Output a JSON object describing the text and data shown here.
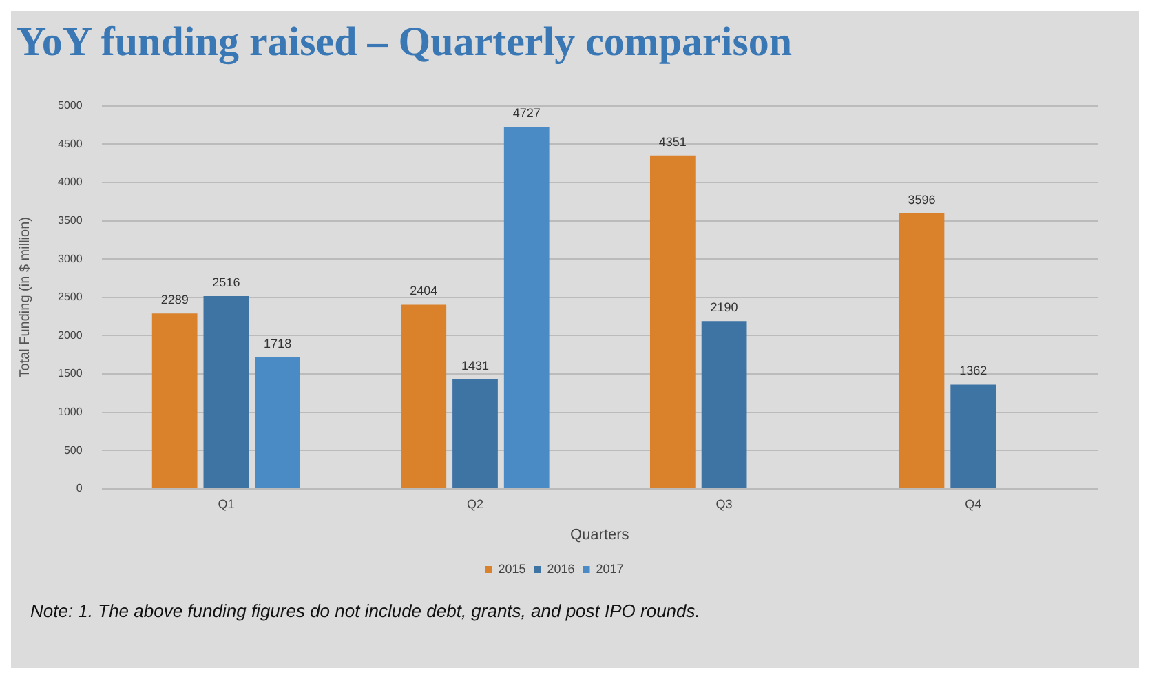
{
  "chart_data": {
    "type": "bar",
    "title": "YoY funding raised – Quarterly comparison",
    "xlabel": "Quarters",
    "ylabel": "Total Funding (in $ million)",
    "categories": [
      "Q1",
      "Q2",
      "Q3",
      "Q4"
    ],
    "series": [
      {
        "name": "2015",
        "color": "#d9822b",
        "values": [
          2289,
          2404,
          4351,
          3596
        ]
      },
      {
        "name": "2016",
        "color": "#3e74a4",
        "values": [
          2516,
          1431,
          2190,
          1362
        ]
      },
      {
        "name": "2017",
        "color": "#4a8bc6",
        "values": [
          1718,
          4727,
          null,
          null
        ]
      }
    ],
    "ylim": [
      0,
      5000
    ],
    "yticks": [
      0,
      500,
      1000,
      1500,
      2000,
      2500,
      3000,
      3500,
      4000,
      4500,
      5000
    ],
    "grid": "y",
    "legend": "bottom",
    "data_labels": true,
    "annotations": [
      "Note: 1. The above funding figures do not include debt, grants, and post IPO rounds."
    ]
  }
}
